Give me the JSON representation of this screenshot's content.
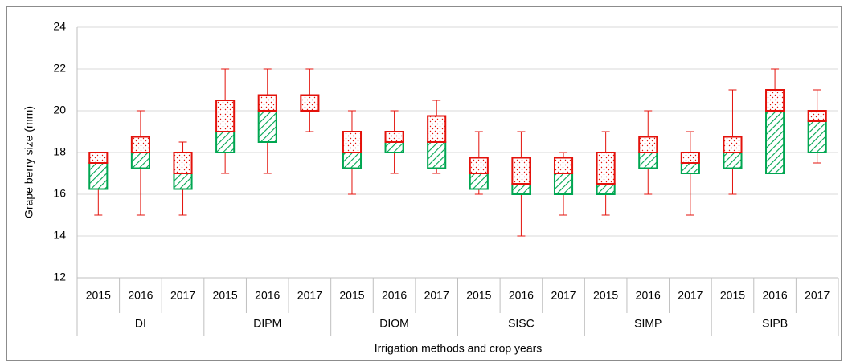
{
  "chart_data": {
    "type": "box",
    "y_label": "Grape berry size (mm)",
    "x_label": "Irrigation methods and crop years",
    "ylim": [
      12,
      24
    ],
    "yticks": [
      12,
      14,
      16,
      18,
      20,
      22,
      24
    ],
    "grid": true,
    "lower_color": "#00a651",
    "upper_color": "#e3120b",
    "groups": [
      {
        "name": "DI",
        "categories": [
          "2015",
          "2016",
          "2017"
        ],
        "boxes": [
          {
            "min": 15,
            "q1": 16.25,
            "median": 17.5,
            "q3": 18,
            "max": 18
          },
          {
            "min": 15,
            "q1": 17.25,
            "median": 18,
            "q3": 18.75,
            "max": 20
          },
          {
            "min": 15,
            "q1": 16.25,
            "median": 17,
            "q3": 18,
            "max": 18.5
          }
        ]
      },
      {
        "name": "DIPM",
        "categories": [
          "2015",
          "2016",
          "2017"
        ],
        "boxes": [
          {
            "min": 17,
            "q1": 18,
            "median": 19,
            "q3": 20.5,
            "max": 22
          },
          {
            "min": 17,
            "q1": 18.5,
            "median": 20,
            "q3": 20.75,
            "max": 22
          },
          {
            "min": 19,
            "q1": 20,
            "median": 20,
            "q3": 20.75,
            "max": 22
          }
        ]
      },
      {
        "name": "DIOM",
        "categories": [
          "2015",
          "2016",
          "2017"
        ],
        "boxes": [
          {
            "min": 16,
            "q1": 17.25,
            "median": 18,
            "q3": 19,
            "max": 20
          },
          {
            "min": 17,
            "q1": 18,
            "median": 18.5,
            "q3": 19,
            "max": 20
          },
          {
            "min": 17,
            "q1": 17.25,
            "median": 18.5,
            "q3": 19.75,
            "max": 20.5
          }
        ]
      },
      {
        "name": "SISC",
        "categories": [
          "2015",
          "2016",
          "2017"
        ],
        "boxes": [
          {
            "min": 16,
            "q1": 16.25,
            "median": 17,
            "q3": 17.75,
            "max": 19
          },
          {
            "min": 14,
            "q1": 16,
            "median": 16.5,
            "q3": 17.75,
            "max": 19
          },
          {
            "min": 15,
            "q1": 16,
            "median": 17,
            "q3": 17.75,
            "max": 18
          }
        ]
      },
      {
        "name": "SIMP",
        "categories": [
          "2015",
          "2016",
          "2017"
        ],
        "boxes": [
          {
            "min": 15,
            "q1": 16,
            "median": 16.5,
            "q3": 18,
            "max": 19
          },
          {
            "min": 16,
            "q1": 17.25,
            "median": 18,
            "q3": 18.75,
            "max": 20
          },
          {
            "min": 15,
            "q1": 17,
            "median": 17.5,
            "q3": 18,
            "max": 19
          }
        ]
      },
      {
        "name": "SIPB",
        "categories": [
          "2015",
          "2016",
          "2017"
        ],
        "boxes": [
          {
            "min": 16,
            "q1": 17.25,
            "median": 18,
            "q3": 18.75,
            "max": 21
          },
          {
            "min": 17,
            "q1": 17,
            "median": 20,
            "q3": 21,
            "max": 22
          },
          {
            "min": 17.5,
            "q1": 18,
            "median": 19.5,
            "q3": 20,
            "max": 21
          }
        ]
      }
    ]
  }
}
